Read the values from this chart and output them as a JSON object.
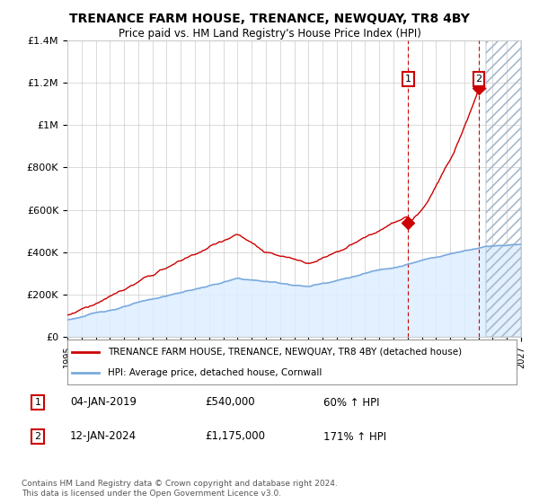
{
  "title": "TRENANCE FARM HOUSE, TRENANCE, NEWQUAY, TR8 4BY",
  "subtitle": "Price paid vs. HM Land Registry's House Price Index (HPI)",
  "legend_line1": "TRENANCE FARM HOUSE, TRENANCE, NEWQUAY, TR8 4BY (detached house)",
  "legend_line2": "HPI: Average price, detached house, Cornwall",
  "annotation1_label": "1",
  "annotation1_date": "04-JAN-2019",
  "annotation1_price": "£540,000",
  "annotation1_pct": "60% ↑ HPI",
  "annotation2_label": "2",
  "annotation2_date": "12-JAN-2024",
  "annotation2_price": "£1,175,000",
  "annotation2_pct": "171% ↑ HPI",
  "footer": "Contains HM Land Registry data © Crown copyright and database right 2024.\nThis data is licensed under the Open Government Licence v3.0.",
  "red_line_color": "#cc0000",
  "blue_line_color": "#7aaadd",
  "blue_fill_color": "#ddeeff",
  "point1_year": 2019.03,
  "point1_value": 540000,
  "point2_year": 2024.03,
  "point2_value": 1175000,
  "xmin": 1995,
  "xmax": 2027,
  "ymin": 0,
  "ymax": 1400000,
  "future_start": 2024.5,
  "yticks": [
    0,
    200000,
    400000,
    600000,
    800000,
    1000000,
    1200000,
    1400000
  ],
  "ylabels": [
    "£0",
    "£200K",
    "£400K",
    "£600K",
    "£800K",
    "£1M",
    "£1.2M",
    "£1.4M"
  ]
}
